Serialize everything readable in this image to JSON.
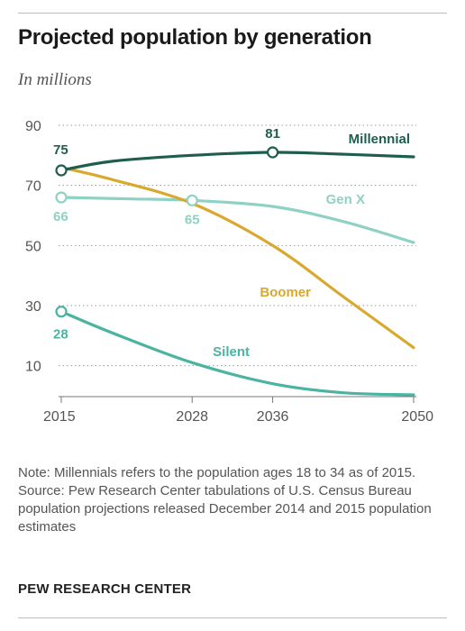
{
  "header": {
    "title": "Projected population by generation",
    "subtitle": "In millions"
  },
  "chart_data": {
    "type": "line",
    "x": [
      2015,
      2028,
      2036,
      2050
    ],
    "xlim": [
      2015,
      2050
    ],
    "ylim": [
      0,
      90
    ],
    "yticks": [
      10,
      30,
      50,
      70,
      90
    ],
    "xticks": [
      "2015",
      "2028",
      "2036",
      "2050"
    ],
    "grid": "horizontal dotted",
    "series": [
      {
        "name": "Millennial",
        "color": "#1f5e4e",
        "points": [
          [
            2015,
            75
          ],
          [
            2020,
            78
          ],
          [
            2028,
            80
          ],
          [
            2036,
            81
          ],
          [
            2042,
            80.5
          ],
          [
            2050,
            79.5
          ]
        ],
        "markers": [
          {
            "x": 2015,
            "y": 75,
            "label": "75"
          },
          {
            "x": 2036,
            "y": 81,
            "label": "81"
          }
        ]
      },
      {
        "name": "Gen X",
        "color": "#8fd1c2",
        "points": [
          [
            2015,
            66
          ],
          [
            2022,
            65.5
          ],
          [
            2028,
            65
          ],
          [
            2036,
            63
          ],
          [
            2043,
            58
          ],
          [
            2050,
            51
          ]
        ],
        "markers": [
          {
            "x": 2015,
            "y": 66,
            "label": "66"
          },
          {
            "x": 2028,
            "y": 65,
            "label": "65"
          }
        ]
      },
      {
        "name": "Boomer",
        "color": "#d9a92e",
        "points": [
          [
            2015,
            76
          ],
          [
            2020,
            72
          ],
          [
            2028,
            64
          ],
          [
            2036,
            50
          ],
          [
            2043,
            33
          ],
          [
            2050,
            16
          ]
        ],
        "markers": []
      },
      {
        "name": "Silent",
        "color": "#4bb3a1",
        "points": [
          [
            2015,
            28
          ],
          [
            2020,
            21
          ],
          [
            2028,
            11
          ],
          [
            2036,
            4
          ],
          [
            2043,
            1
          ],
          [
            2050,
            0.3
          ]
        ],
        "markers": [
          {
            "x": 2015,
            "y": 28,
            "label": "28"
          }
        ]
      }
    ]
  },
  "notes": {
    "note": "Note: Millennials refers to the population ages 18 to 34 as of 2015.",
    "source": "Source: Pew Research Center tabulations of U.S. Census Bureau population projections released December 2014 and 2015 population estimates"
  },
  "credit": "PEW RESEARCH CENTER"
}
